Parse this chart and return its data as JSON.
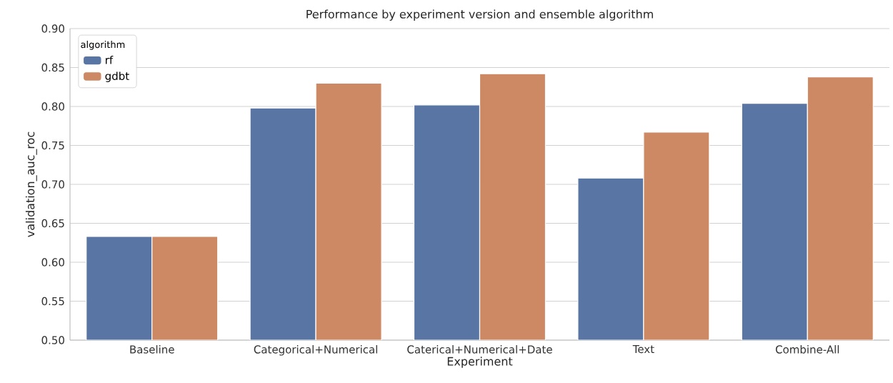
{
  "chart_data": {
    "type": "bar",
    "title": "Performance by experiment version and ensemble algorithm",
    "xlabel": "Experiment",
    "ylabel": "validation_auc_roc",
    "legend_title": "algorithm",
    "categories": [
      "Baseline",
      "Categorical+Numerical",
      "Caterical+Numerical+Date",
      "Text",
      "Combine-All"
    ],
    "series": [
      {
        "name": "rf",
        "color": "#5975a4",
        "values": [
          0.633,
          0.798,
          0.802,
          0.708,
          0.804
        ]
      },
      {
        "name": "gdbt",
        "color": "#cc8963",
        "values": [
          0.633,
          0.83,
          0.842,
          0.767,
          0.838
        ]
      }
    ],
    "ylim": [
      0.5,
      0.9
    ],
    "yticks": [
      {
        "value": 0.5,
        "label": "0.50"
      },
      {
        "value": 0.55,
        "label": "0.55"
      },
      {
        "value": 0.6,
        "label": "0.60"
      },
      {
        "value": 0.65,
        "label": "0.65"
      },
      {
        "value": 0.7,
        "label": "0.70"
      },
      {
        "value": 0.75,
        "label": "0.75"
      },
      {
        "value": 0.8,
        "label": "0.80"
      },
      {
        "value": 0.85,
        "label": "0.85"
      },
      {
        "value": 0.9,
        "label": "0.90"
      }
    ],
    "grid": "y",
    "legend": "top left"
  }
}
